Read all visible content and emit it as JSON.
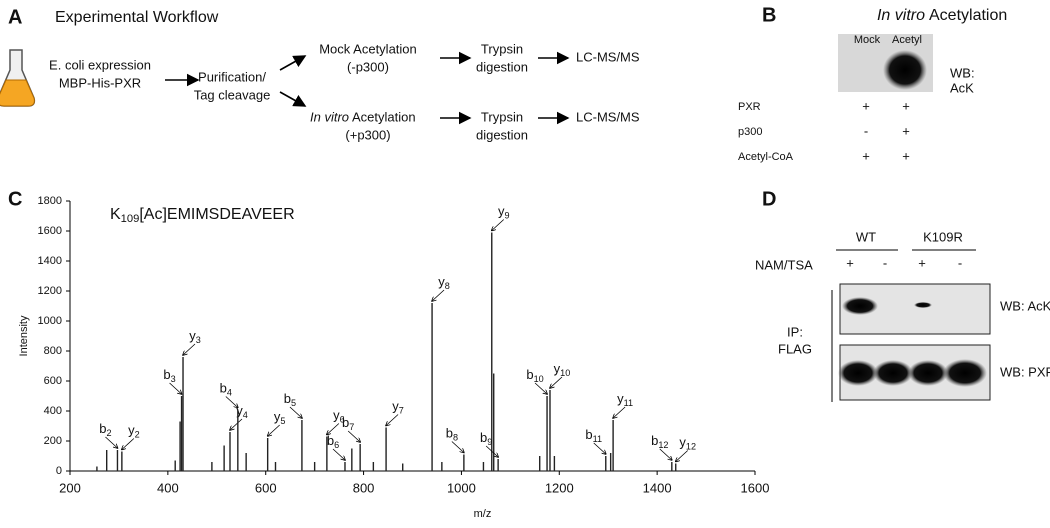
{
  "panel_a": {
    "label": "A",
    "title": "Experimental Workflow",
    "expression": [
      "E. coli expression",
      "MBP-His-PXR"
    ],
    "purification": [
      "Purification/",
      "Tag cleavage"
    ],
    "mock": [
      "Mock Acetylation",
      "(-p300)"
    ],
    "invitro": [
      "In vitro",
      "Acetylation",
      "(+p300)"
    ],
    "trypsin": [
      [
        "Trypsin",
        "digestion"
      ],
      [
        "Trypsin",
        "digestion"
      ]
    ],
    "lcms": [
      "LC-MS/MS",
      "LC-MS/MS"
    ]
  },
  "panel_b": {
    "label": "B",
    "title_italic": "In vitro",
    "title": "Acetylation",
    "lanes": [
      "Mock",
      "Acetyl"
    ],
    "blot_label": [
      "WB:",
      "AcK"
    ],
    "rows": [
      {
        "name": "PXR",
        "marks": [
          "+",
          "+"
        ]
      },
      {
        "name": "p300",
        "marks": [
          "-",
          "+"
        ]
      },
      {
        "name": "Acetyl-CoA",
        "marks": [
          "+",
          "+"
        ]
      }
    ]
  },
  "panel_d": {
    "label": "D",
    "groups": [
      "WT",
      "K109R"
    ],
    "treatment": "NAM/TSA",
    "marks": [
      "+",
      "-",
      "+",
      "-"
    ],
    "ip": [
      "IP:",
      "FLAG"
    ],
    "blots": [
      "WB: AcK",
      "WB: PXR"
    ]
  },
  "chart_data": {
    "type": "spectrum",
    "label": "C",
    "title": "K109[Ac]EMIMSDEAVEER",
    "x_label": "m/z",
    "y_label": "Intensity",
    "color": "#222222",
    "xlim": [
      200,
      1600
    ],
    "ylim": [
      0,
      1800
    ],
    "xticks": [
      200,
      400,
      600,
      800,
      1000,
      1200,
      1400,
      1600
    ],
    "yticks": [
      0,
      200,
      400,
      600,
      800,
      1000,
      1200,
      1400,
      1600,
      1800
    ],
    "x": [
      255,
      275,
      297,
      306,
      415,
      425,
      428,
      431,
      490,
      515,
      527,
      543,
      560,
      604,
      620,
      674,
      700,
      725,
      762,
      776,
      793,
      820,
      846,
      880,
      940,
      960,
      1005,
      1045,
      1062,
      1066,
      1075,
      1160,
      1175,
      1181,
      1190,
      1295,
      1305,
      1310,
      1430,
      1438
    ],
    "values": [
      30,
      140,
      140,
      130,
      70,
      330,
      500,
      760,
      60,
      170,
      260,
      410,
      120,
      220,
      60,
      340,
      60,
      230,
      60,
      150,
      180,
      60,
      290,
      50,
      1120,
      60,
      110,
      60,
      1590,
      650,
      80,
      100,
      500,
      540,
      100,
      100,
      120,
      340,
      60,
      50
    ],
    "peak_labels": [
      null,
      null,
      "b2",
      "y2",
      null,
      null,
      "b3",
      "y3",
      null,
      null,
      "y4",
      "b4",
      null,
      "y5",
      null,
      "b5",
      null,
      "y6",
      "b6",
      null,
      "b7",
      null,
      "y7",
      null,
      "y8",
      null,
      "b8",
      null,
      "y9",
      null,
      "b9",
      null,
      "b10",
      "y10",
      null,
      "b11",
      null,
      "y11",
      "b12",
      "y12"
    ]
  }
}
